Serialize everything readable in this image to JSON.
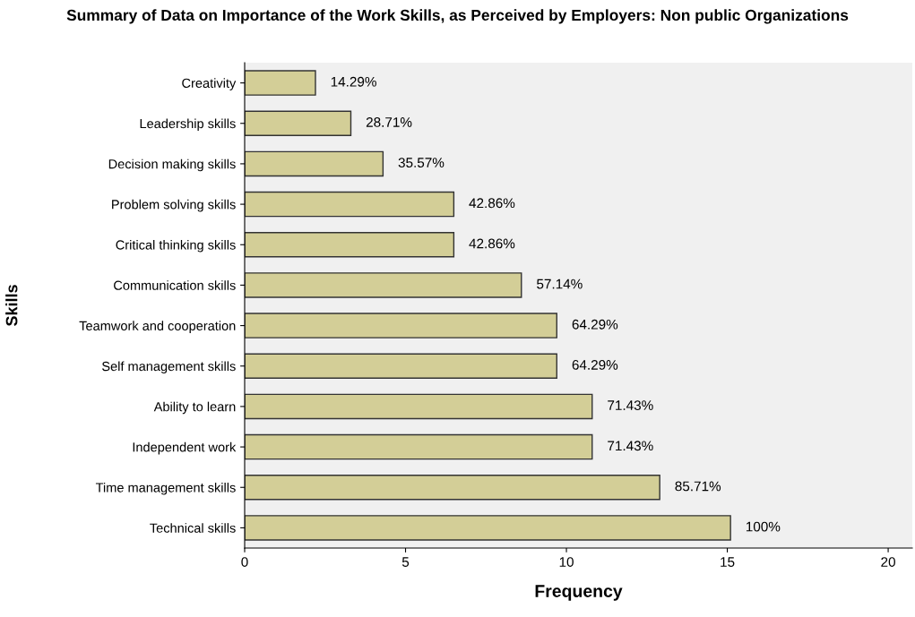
{
  "chart_data": {
    "type": "bar",
    "orientation": "horizontal",
    "title": "Summary of Data on Importance of the Work Skills, as Perceived by Employers: Non public Organizations",
    "xlabel": "Frequency",
    "ylabel": "Skills",
    "categories": [
      "Creativity",
      "Leadership skills",
      "Decision making skills",
      "Problem solving skills",
      "Critical thinking skills",
      "Communication skills",
      "Teamwork and cooperation",
      "Self management skills",
      "Ability to learn",
      "Independent work",
      "Time management skills",
      "Technical skills"
    ],
    "values": [
      2.2,
      3.3,
      4.3,
      6.5,
      6.5,
      8.6,
      9.7,
      9.7,
      10.8,
      10.8,
      12.9,
      15.1
    ],
    "annotations": [
      {
        "text": "14.29%",
        "x": 2.2,
        "y": "Creativity"
      },
      {
        "text": "28.71%",
        "x": 3.3,
        "y": "Leadership skills"
      },
      {
        "text": "35.57%",
        "x": 4.3,
        "y": "Decision making skills"
      },
      {
        "text": "42.86%",
        "x": 6.5,
        "y": "Problem solving skills"
      },
      {
        "text": "42.86%",
        "x": 6.5,
        "y": "Critical thinking skills"
      },
      {
        "text": "57.14%",
        "x": 8.6,
        "y": "Communication skills"
      },
      {
        "text": "64.29%",
        "x": 9.7,
        "y": "Teamwork and cooperation"
      },
      {
        "text": "64.29%",
        "x": 9.7,
        "y": "Self management skills"
      },
      {
        "text": "71.43%",
        "x": 10.8,
        "y": "Ability to learn"
      },
      {
        "text": "71.43%",
        "x": 10.8,
        "y": "Independent work"
      },
      {
        "text": "85.71%",
        "x": 12.9,
        "y": "Time management skills"
      },
      {
        "text": "100%",
        "x": 15.1,
        "y": "Technical skills"
      }
    ],
    "color": "#d3ce97",
    "xlim": [
      0,
      20.75
    ],
    "xticks": [
      0,
      5,
      10,
      15,
      20
    ],
    "grid": false
  }
}
